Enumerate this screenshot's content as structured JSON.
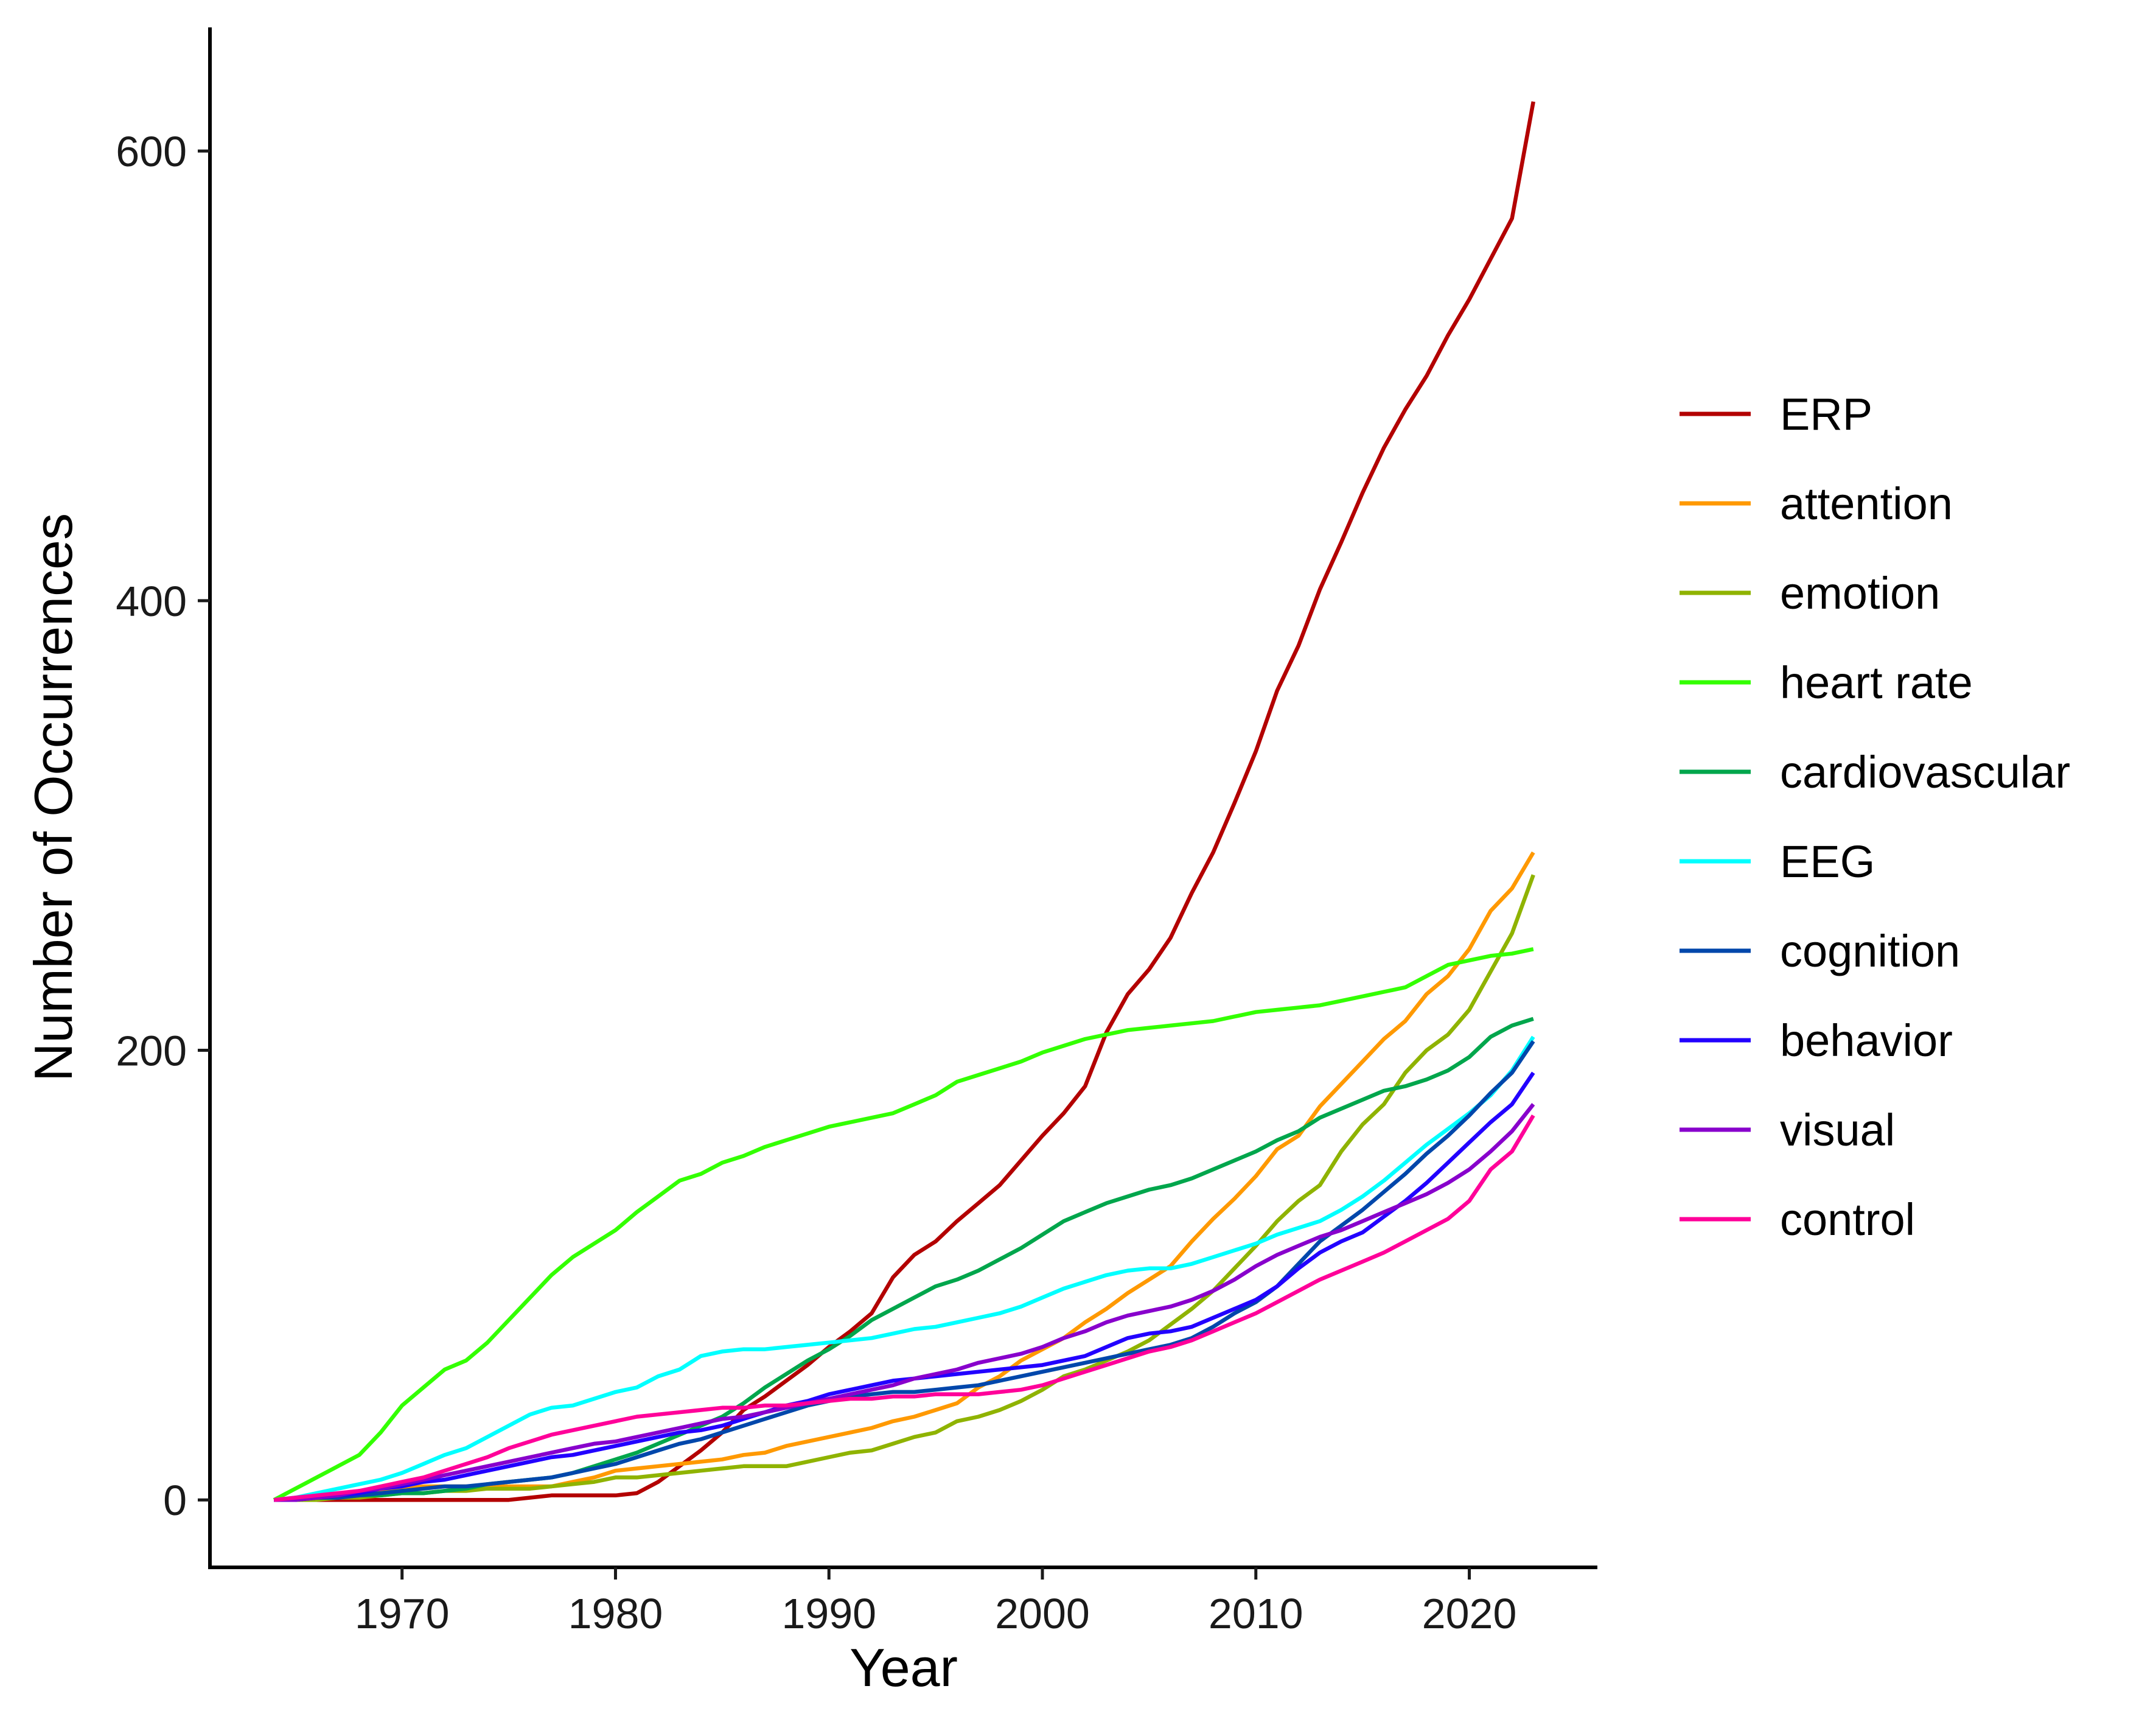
{
  "chart_data": {
    "type": "line",
    "xlabel": "Year",
    "ylabel": "Number of Occurrences",
    "xlim": [
      1961,
      2026
    ],
    "ylim": [
      -30,
      655
    ],
    "xticks": [
      1970,
      1980,
      1990,
      2000,
      2010,
      2020
    ],
    "yticks": [
      0,
      200,
      400,
      600
    ],
    "grid": false,
    "legend_position": "right",
    "x": [
      1964,
      1965,
      1966,
      1967,
      1968,
      1969,
      1970,
      1971,
      1972,
      1973,
      1974,
      1975,
      1976,
      1977,
      1978,
      1979,
      1980,
      1981,
      1982,
      1983,
      1984,
      1985,
      1986,
      1987,
      1988,
      1989,
      1990,
      1991,
      1992,
      1993,
      1994,
      1995,
      1996,
      1997,
      1998,
      1999,
      2000,
      2001,
      2002,
      2003,
      2004,
      2005,
      2006,
      2007,
      2008,
      2009,
      2010,
      2011,
      2012,
      2013,
      2014,
      2015,
      2016,
      2017,
      2018,
      2019,
      2020,
      2021,
      2022,
      2023
    ],
    "series": [
      {
        "name": "ERP",
        "color": "#b30000",
        "values": [
          0,
          0,
          0,
          0,
          0,
          0,
          0,
          0,
          0,
          0,
          0,
          0,
          1,
          2,
          2,
          2,
          2,
          3,
          8,
          15,
          22,
          30,
          40,
          46,
          53,
          60,
          68,
          75,
          83,
          99,
          109,
          115,
          124,
          132,
          140,
          151,
          162,
          172,
          184,
          208,
          225,
          236,
          250,
          270,
          288,
          310,
          333,
          360,
          380,
          405,
          426,
          448,
          468,
          485,
          500,
          518,
          534,
          552,
          570,
          622
        ]
      },
      {
        "name": "attention",
        "color": "#ff9900",
        "values": [
          0,
          0,
          1,
          2,
          3,
          4,
          5,
          6,
          6,
          6,
          6,
          6,
          6,
          6,
          8,
          10,
          13,
          14,
          15,
          16,
          17,
          18,
          20,
          21,
          24,
          26,
          28,
          30,
          32,
          35,
          37,
          40,
          43,
          50,
          55,
          62,
          67,
          72,
          79,
          85,
          92,
          98,
          104,
          115,
          125,
          134,
          144,
          156,
          162,
          175,
          185,
          195,
          205,
          213,
          225,
          233,
          245,
          262,
          272,
          288
        ]
      },
      {
        "name": "emotion",
        "color": "#8fb300",
        "values": [
          0,
          0,
          0,
          1,
          1,
          2,
          3,
          3,
          4,
          4,
          5,
          5,
          5,
          6,
          7,
          8,
          10,
          10,
          11,
          12,
          13,
          14,
          15,
          15,
          15,
          17,
          19,
          21,
          22,
          25,
          28,
          30,
          35,
          37,
          40,
          44,
          49,
          55,
          58,
          62,
          66,
          71,
          78,
          85,
          93,
          103,
          113,
          124,
          133,
          140,
          155,
          167,
          176,
          190,
          200,
          207,
          218,
          235,
          252,
          278
        ]
      },
      {
        "name": "heart rate",
        "color": "#33ff00",
        "values": [
          0,
          5,
          10,
          15,
          20,
          30,
          42,
          50,
          58,
          62,
          70,
          80,
          90,
          100,
          108,
          114,
          120,
          128,
          135,
          142,
          145,
          150,
          153,
          157,
          160,
          163,
          166,
          168,
          170,
          172,
          176,
          180,
          186,
          189,
          192,
          195,
          199,
          202,
          205,
          207,
          209,
          210,
          211,
          212,
          213,
          215,
          217,
          218,
          219,
          220,
          222,
          224,
          226,
          228,
          233,
          238,
          240,
          242,
          243,
          245
        ]
      },
      {
        "name": "cardiovascular",
        "color": "#00a64c",
        "values": [
          0,
          0,
          1,
          1,
          2,
          2,
          3,
          3,
          4,
          5,
          7,
          8,
          9,
          10,
          12,
          15,
          18,
          21,
          25,
          29,
          33,
          37,
          43,
          50,
          56,
          62,
          67,
          73,
          80,
          85,
          90,
          95,
          98,
          102,
          107,
          112,
          118,
          124,
          128,
          132,
          135,
          138,
          140,
          143,
          147,
          151,
          155,
          160,
          164,
          170,
          174,
          178,
          182,
          184,
          187,
          191,
          197,
          206,
          211,
          214
        ]
      },
      {
        "name": "EEG",
        "color": "#00ffff",
        "values": [
          0,
          1,
          3,
          5,
          7,
          9,
          12,
          16,
          20,
          23,
          28,
          33,
          38,
          41,
          42,
          45,
          48,
          50,
          55,
          58,
          64,
          66,
          67,
          67,
          68,
          69,
          70,
          71,
          72,
          74,
          76,
          77,
          79,
          81,
          83,
          86,
          90,
          94,
          97,
          100,
          102,
          103,
          103,
          105,
          108,
          111,
          114,
          118,
          121,
          124,
          129,
          135,
          142,
          150,
          158,
          165,
          172,
          180,
          191,
          206
        ]
      },
      {
        "name": "cognition",
        "color": "#0047ab",
        "values": [
          0,
          0,
          1,
          1,
          2,
          3,
          4,
          5,
          6,
          6,
          7,
          8,
          9,
          10,
          12,
          14,
          16,
          19,
          22,
          25,
          27,
          30,
          33,
          36,
          39,
          42,
          44,
          46,
          47,
          48,
          48,
          49,
          50,
          51,
          53,
          55,
          57,
          59,
          61,
          63,
          65,
          67,
          69,
          72,
          77,
          83,
          88,
          95,
          105,
          115,
          122,
          129,
          137,
          145,
          154,
          162,
          171,
          181,
          190,
          204
        ]
      },
      {
        "name": "behavior",
        "color": "#2200ff",
        "values": [
          0,
          0,
          1,
          2,
          3,
          5,
          6,
          8,
          9,
          11,
          13,
          15,
          17,
          19,
          20,
          22,
          24,
          26,
          28,
          30,
          31,
          33,
          36,
          39,
          42,
          44,
          47,
          49,
          51,
          53,
          54,
          55,
          56,
          57,
          58,
          59,
          60,
          62,
          64,
          68,
          72,
          74,
          75,
          77,
          81,
          85,
          89,
          95,
          103,
          110,
          115,
          119,
          126,
          133,
          141,
          150,
          159,
          168,
          176,
          190
        ]
      },
      {
        "name": "visual",
        "color": "#8800cc",
        "values": [
          0,
          0,
          1,
          2,
          4,
          5,
          7,
          9,
          11,
          13,
          15,
          17,
          19,
          21,
          23,
          25,
          26,
          28,
          30,
          32,
          34,
          36,
          37,
          39,
          41,
          43,
          45,
          47,
          49,
          51,
          54,
          56,
          58,
          61,
          63,
          65,
          68,
          72,
          75,
          79,
          82,
          84,
          86,
          89,
          93,
          98,
          104,
          109,
          113,
          117,
          120,
          124,
          128,
          132,
          136,
          141,
          147,
          155,
          164,
          176
        ]
      },
      {
        "name": "control",
        "color": "#ff0099",
        "values": [
          0,
          1,
          2,
          3,
          4,
          6,
          8,
          10,
          13,
          16,
          19,
          23,
          26,
          29,
          31,
          33,
          35,
          37,
          38,
          39,
          40,
          41,
          41,
          42,
          42,
          43,
          44,
          45,
          45,
          46,
          46,
          47,
          47,
          47,
          48,
          49,
          51,
          54,
          57,
          60,
          63,
          66,
          68,
          71,
          75,
          79,
          83,
          88,
          93,
          98,
          102,
          106,
          110,
          115,
          120,
          125,
          133,
          147,
          155,
          171
        ]
      }
    ]
  }
}
